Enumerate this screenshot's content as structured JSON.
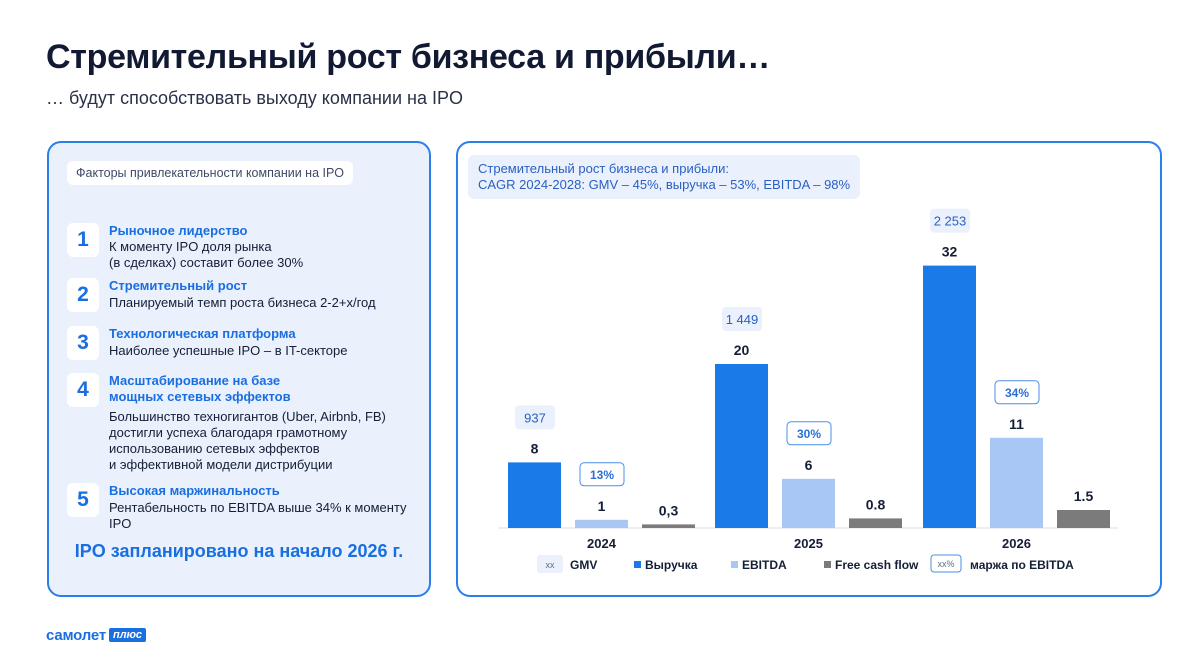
{
  "header": {
    "title": "Стремительный рост бизнеса и прибыли…",
    "subtitle": "… будут способствовать выходу компании на IPO"
  },
  "left_panel": {
    "tag": "Факторы привлекательности компании на IPO",
    "factors": [
      {
        "num": "1",
        "heading": "Рыночное лидерство",
        "text": "К моменту IPO доля рынка\n(в сделках) составит более 30%"
      },
      {
        "num": "2",
        "heading": "Стремительный рост",
        "text": "Планируемый темп роста бизнеса 2-2+х/год"
      },
      {
        "num": "3",
        "heading": "Технологическая платформа",
        "text": "Наиболее успешные IPO – в IT-секторе"
      },
      {
        "num": "4",
        "heading": "Масштабирование на базе\nмощных сетевых эффектов",
        "text": "Большинство техногигантов (Uber, Airbnb, FB)\nдостигли успеха благодаря грамотному\nиспользованию сетевых эффектов\nи эффективной модели дистрибуции"
      },
      {
        "num": "5",
        "heading": "Высокая маржинальность",
        "text": "Рентабельность по EBITDA выше 34% к моменту IPO"
      }
    ],
    "footer": "IPO запланировано на начало 2026 г."
  },
  "right_panel": {
    "tag_line1": "Стремительный рост бизнеса и прибыли:",
    "tag_line2": "CAGR 2024-2028: GMV – 45%, выручка – 53%, EBITDA – 98%"
  },
  "colors": {
    "revenue": "#1a7be8",
    "ebitda": "#a8c7f5",
    "fcf": "#7b7b7b",
    "accent": "#1a6fe0",
    "panel_bg": "#eaf1fd"
  },
  "chart_data": {
    "type": "bar",
    "categories": [
      "2024",
      "2025",
      "2026"
    ],
    "series": [
      {
        "name": "Выручка",
        "values": [
          8,
          20,
          32
        ],
        "labels": [
          "8",
          "20",
          "32"
        ]
      },
      {
        "name": "EBITDA",
        "values": [
          1,
          6,
          11
        ],
        "labels": [
          "1",
          "6",
          "11"
        ]
      },
      {
        "name": "Free cash flow",
        "values": [
          0.3,
          0.8,
          1.5
        ],
        "labels": [
          "0,3",
          "0.8",
          "1.5"
        ]
      }
    ],
    "gmv": {
      "values": [
        937,
        1449,
        2253
      ],
      "labels": [
        "937",
        "1 449",
        "2 253"
      ]
    },
    "ebitda_margin": {
      "values": [
        13,
        30,
        34
      ],
      "labels": [
        "13%",
        "30%",
        "34%"
      ]
    },
    "legend": [
      {
        "key": "gmv",
        "swatch": "xx",
        "label": "GMV"
      },
      {
        "key": "revenue",
        "label": "Выручка"
      },
      {
        "key": "ebitda",
        "label": "EBITDA"
      },
      {
        "key": "fcf",
        "label": "Free cash flow"
      },
      {
        "key": "margin",
        "swatch": "xx%",
        "label": "маржа по EBITDA"
      }
    ],
    "legend_position": "bottom",
    "grid": false
  },
  "logo": {
    "main": "самолет",
    "badge": "плюс"
  }
}
